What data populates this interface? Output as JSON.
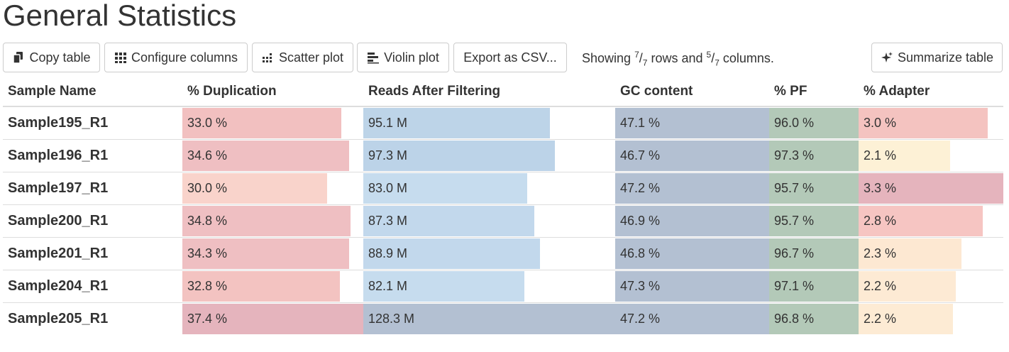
{
  "title": "General Statistics",
  "toolbar": {
    "copy": {
      "label": "Copy table",
      "icon": "copy-icon"
    },
    "configure": {
      "label": "Configure columns",
      "icon": "grid-icon"
    },
    "scatter": {
      "label": "Scatter plot",
      "icon": "scatter-icon"
    },
    "violin": {
      "label": "Violin plot",
      "icon": "violin-icon"
    },
    "export": {
      "label": "Export as CSV..."
    },
    "summarize": {
      "label": "Summarize table",
      "icon": "sparkle-icon"
    }
  },
  "showing": {
    "prefix": "Showing ",
    "rows_num": "7",
    "rows_den": "7",
    "mid": " rows and ",
    "cols_num": "5",
    "cols_den": "7",
    "suffix": " columns."
  },
  "columns": [
    "Sample Name",
    "% Duplication",
    "Reads After Filtering",
    "GC content",
    "% PF",
    "% Adapter"
  ],
  "rows": [
    {
      "name": "Sample195_R1",
      "dup": "33.0 %",
      "dup_f": 0.88,
      "dup_c": "#f2c0c0",
      "reads": "95.1 M",
      "reads_f": 0.74,
      "reads_c": "#bdd4e8",
      "gc": "47.1 %",
      "gc_f": 1.0,
      "gc_c": "#b3c0d2",
      "pf": "96.0 %",
      "pf_f": 1.0,
      "pf_c": "#b3c9b8",
      "adapt": "3.0 %",
      "adapt_f": 0.89,
      "adapt_c": "#f4c3c0"
    },
    {
      "name": "Sample196_R1",
      "dup": "34.6 %",
      "dup_f": 0.92,
      "dup_c": "#efbfc2",
      "reads": "97.3 M",
      "reads_f": 0.76,
      "reads_c": "#bcd3e8",
      "gc": "46.7 %",
      "gc_f": 1.0,
      "gc_c": "#b3c0d2",
      "pf": "97.3 %",
      "pf_f": 1.0,
      "pf_c": "#b3c9b8",
      "adapt": "2.1 %",
      "adapt_f": 0.63,
      "adapt_c": "#fdf1d6"
    },
    {
      "name": "Sample197_R1",
      "dup": "30.0 %",
      "dup_f": 0.8,
      "dup_c": "#f9d3cb",
      "reads": "83.0 M",
      "reads_f": 0.65,
      "reads_c": "#c6dcee",
      "gc": "47.2 %",
      "gc_f": 1.0,
      "gc_c": "#b3c0d2",
      "pf": "95.7 %",
      "pf_f": 1.0,
      "pf_c": "#b3c9b8",
      "adapt": "3.3 %",
      "adapt_f": 1.0,
      "adapt_c": "#e5b4bd"
    },
    {
      "name": "Sample200_R1",
      "dup": "34.8 %",
      "dup_f": 0.93,
      "dup_c": "#efbfc2",
      "reads": "87.3 M",
      "reads_f": 0.68,
      "reads_c": "#c2d8ec",
      "gc": "46.9 %",
      "gc_f": 1.0,
      "gc_c": "#b3c0d2",
      "pf": "95.7 %",
      "pf_f": 1.0,
      "pf_c": "#b3c9b8",
      "adapt": "2.8 %",
      "adapt_f": 0.86,
      "adapt_c": "#f6c5c2"
    },
    {
      "name": "Sample201_R1",
      "dup": "34.3 %",
      "dup_f": 0.92,
      "dup_c": "#efbfc2",
      "reads": "88.9 M",
      "reads_f": 0.7,
      "reads_c": "#c2d8ec",
      "gc": "46.8 %",
      "gc_f": 1.0,
      "gc_c": "#b3c0d2",
      "pf": "96.7 %",
      "pf_f": 1.0,
      "pf_c": "#b3c9b8",
      "adapt": "2.3 %",
      "adapt_f": 0.71,
      "adapt_c": "#fde8d2"
    },
    {
      "name": "Sample204_R1",
      "dup": "32.8 %",
      "dup_f": 0.87,
      "dup_c": "#f3c3c1",
      "reads": "82.1 M",
      "reads_f": 0.64,
      "reads_c": "#c6dcee",
      "gc": "47.3 %",
      "gc_f": 1.0,
      "gc_c": "#b3c0d2",
      "pf": "97.1 %",
      "pf_f": 1.0,
      "pf_c": "#b3c9b8",
      "adapt": "2.2 %",
      "adapt_f": 0.67,
      "adapt_c": "#fdead4"
    },
    {
      "name": "Sample205_R1",
      "dup": "37.4 %",
      "dup_f": 1.0,
      "dup_c": "#e5b4bd",
      "reads": "128.3 M",
      "reads_f": 1.0,
      "reads_c": "#b3c0d2",
      "gc": "47.2 %",
      "gc_f": 1.0,
      "gc_c": "#b3c0d2",
      "pf": "96.8 %",
      "pf_f": 1.0,
      "pf_c": "#b3c9b8",
      "adapt": "2.2 %",
      "adapt_f": 0.65,
      "adapt_c": "#fdebd4"
    }
  ]
}
